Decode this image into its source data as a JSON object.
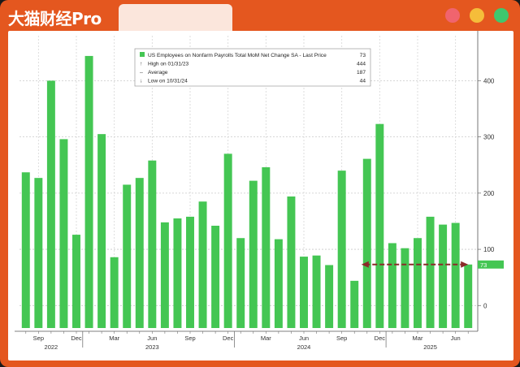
{
  "app": {
    "brand": "大猫财经Pro",
    "window_controls": [
      "red",
      "yellow",
      "green"
    ]
  },
  "colors": {
    "accent": "#e4571f",
    "bar": "#44c653",
    "arrow": "#8b2a2a",
    "red_dot": "#f0646e",
    "yellow_dot": "#f5bd3a",
    "green_dot": "#3fc76e"
  },
  "chart_data": {
    "type": "bar",
    "categories": [
      "2022-08",
      "2022-09",
      "2022-10",
      "2022-11",
      "2022-12",
      "2023-01",
      "2023-02",
      "2023-03",
      "2023-04",
      "2023-05",
      "2023-06",
      "2023-07",
      "2023-08",
      "2023-09",
      "2023-10",
      "2023-11",
      "2023-12",
      "2024-01",
      "2024-02",
      "2024-03",
      "2024-04",
      "2024-05",
      "2024-06",
      "2024-07",
      "2024-08",
      "2024-09",
      "2024-10",
      "2024-11",
      "2024-12",
      "2025-01",
      "2025-02",
      "2025-03",
      "2025-04",
      "2025-05",
      "2025-06",
      "2025-07"
    ],
    "values": [
      237,
      227,
      400,
      296,
      126,
      444,
      305,
      86,
      215,
      227,
      258,
      148,
      155,
      158,
      185,
      142,
      270,
      120,
      222,
      246,
      118,
      194,
      87,
      89,
      72,
      240,
      44,
      261,
      323,
      111,
      102,
      120,
      158,
      144,
      147,
      73
    ],
    "ylim": [
      -40,
      480
    ],
    "yticks": [
      0,
      100,
      200,
      300,
      400
    ],
    "x_tick_labels": [
      {
        "label": "Sep",
        "at": "2022-09"
      },
      {
        "label": "Dec",
        "at": "2022-12"
      },
      {
        "label": "Mar",
        "at": "2023-03"
      },
      {
        "label": "Jun",
        "at": "2023-06"
      },
      {
        "label": "Sep",
        "at": "2023-09"
      },
      {
        "label": "Dec",
        "at": "2023-12"
      },
      {
        "label": "Mar",
        "at": "2024-03"
      },
      {
        "label": "Jun",
        "at": "2024-06"
      },
      {
        "label": "Sep",
        "at": "2024-09"
      },
      {
        "label": "Dec",
        "at": "2024-12"
      },
      {
        "label": "Mar",
        "at": "2025-03"
      },
      {
        "label": "Jun",
        "at": "2025-06"
      }
    ],
    "year_labels": [
      {
        "label": "2022",
        "center": "2022-10"
      },
      {
        "label": "2023",
        "center": "2023-06"
      },
      {
        "label": "2024",
        "center": "2024-06"
      },
      {
        "label": "2025",
        "center": "2025-04"
      }
    ],
    "year_starts": [
      "2023-01",
      "2024-01",
      "2025-01"
    ],
    "legend": {
      "placement": "top-left",
      "rows": [
        {
          "label": "US Employees on Nonfarm Payrolls Total MoM Net Change SA - Last Price",
          "value": "73"
        },
        {
          "label": "High on 01/31/23",
          "value": "444"
        },
        {
          "label": "Average",
          "value": "187"
        },
        {
          "label": "Low on 10/31/24",
          "value": "44"
        }
      ]
    },
    "last_value_label": "73",
    "arrow": {
      "from": "2025-07",
      "to": "2024-11",
      "y": 73
    },
    "grid": true
  }
}
